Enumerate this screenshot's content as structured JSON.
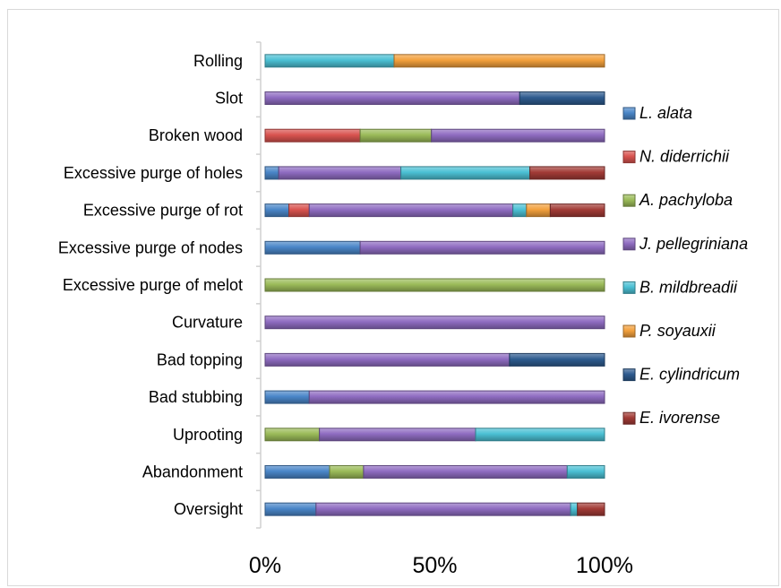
{
  "chart_data": {
    "type": "bar",
    "orientation": "horizontal",
    "stacked": "percent",
    "categories": [
      "Rolling",
      "Slot",
      "Broken wood",
      "Excessive purge of holes",
      "Excessive purge of rot",
      "Excessive purge of nodes",
      "Excessive purge of melot",
      "Curvature",
      "Bad topping",
      "Bad stubbing",
      "Uprooting",
      "Abandonment",
      "Oversight"
    ],
    "series": [
      {
        "name": "L. alata",
        "color": "#4a86c8",
        "values": [
          0,
          0,
          0,
          4,
          7,
          28,
          0,
          0,
          0,
          13,
          0,
          19,
          15
        ]
      },
      {
        "name": "N. diderrichii",
        "color": "#d9534f",
        "values": [
          0,
          0,
          28,
          0,
          6,
          0,
          0,
          0,
          0,
          0,
          0,
          0,
          0
        ]
      },
      {
        "name": "A. pachyloba",
        "color": "#9bbb59",
        "values": [
          0,
          0,
          21,
          0,
          0,
          0,
          100,
          0,
          0,
          0,
          16,
          10,
          0
        ]
      },
      {
        "name": "J. pellegriniana",
        "color": "#8f6cc1",
        "values": [
          0,
          75,
          51,
          36,
          60,
          72,
          0,
          100,
          72,
          87,
          46,
          60,
          75
        ]
      },
      {
        "name": "B. mildbreadii",
        "color": "#4bc0d4",
        "values": [
          38,
          0,
          0,
          38,
          4,
          0,
          0,
          0,
          0,
          0,
          38,
          11,
          2
        ]
      },
      {
        "name": "P. soyauxii",
        "color": "#f3a03c",
        "values": [
          62,
          0,
          0,
          0,
          7,
          0,
          0,
          0,
          0,
          0,
          0,
          0,
          0
        ]
      },
      {
        "name": "E. cylindricum",
        "color": "#2e5b8f",
        "values": [
          0,
          25,
          0,
          0,
          0,
          0,
          0,
          0,
          28,
          0,
          0,
          0,
          0
        ]
      },
      {
        "name": "E. ivorense",
        "color": "#a23b36",
        "values": [
          0,
          0,
          0,
          22,
          16,
          0,
          0,
          0,
          0,
          0,
          0,
          0,
          8
        ]
      }
    ],
    "x_ticks": [
      "0%",
      "50%",
      "100%"
    ],
    "xlim": [
      0,
      100
    ],
    "legend_position": "right",
    "grid": false
  }
}
